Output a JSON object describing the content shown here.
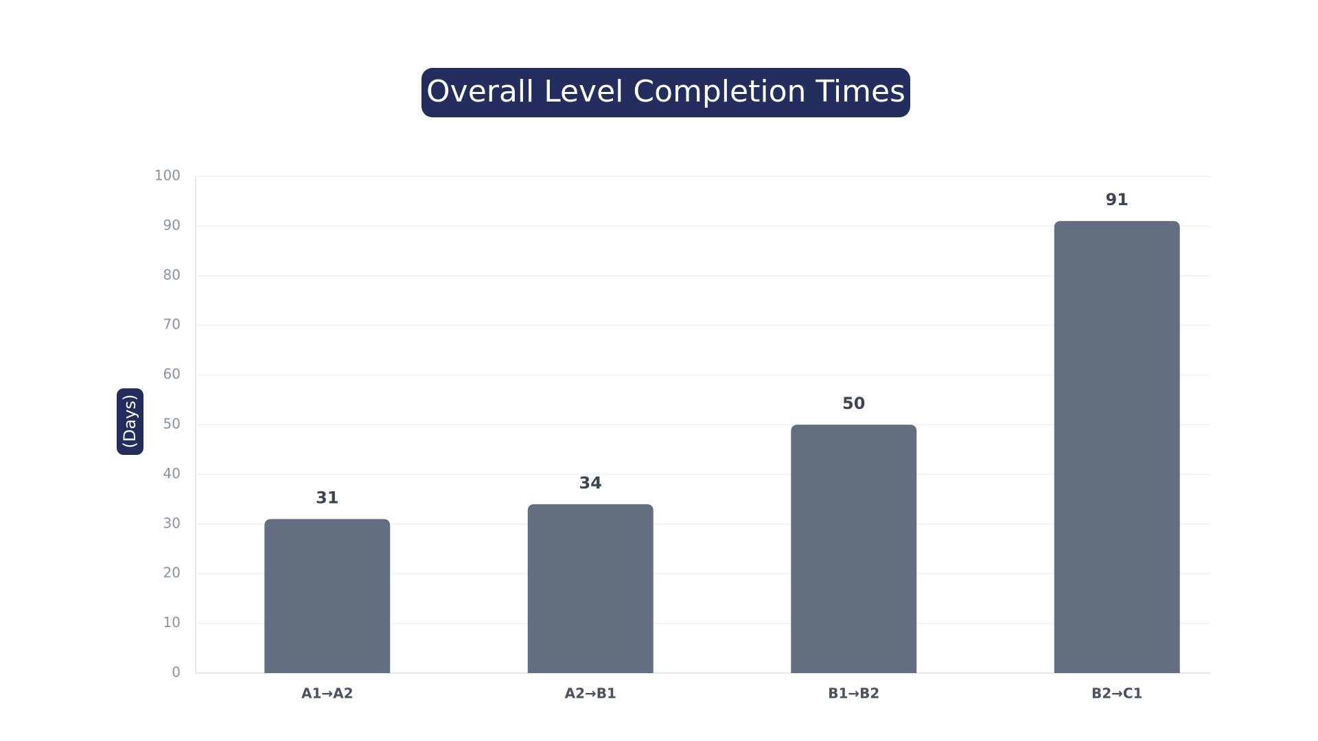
{
  "chart_data": {
    "type": "bar",
    "title": "Overall Level Completion Times",
    "y_label": "(Days)",
    "categories": [
      "A1→A2",
      "A2→B1",
      "B1→B2",
      "B2→C1"
    ],
    "values": [
      31,
      34,
      50,
      91
    ],
    "color": "#636e80",
    "ylim": [
      0,
      100
    ],
    "yticks": [
      0,
      10,
      20,
      30,
      40,
      50,
      60,
      70,
      80,
      90,
      100
    ],
    "grid": true
  }
}
